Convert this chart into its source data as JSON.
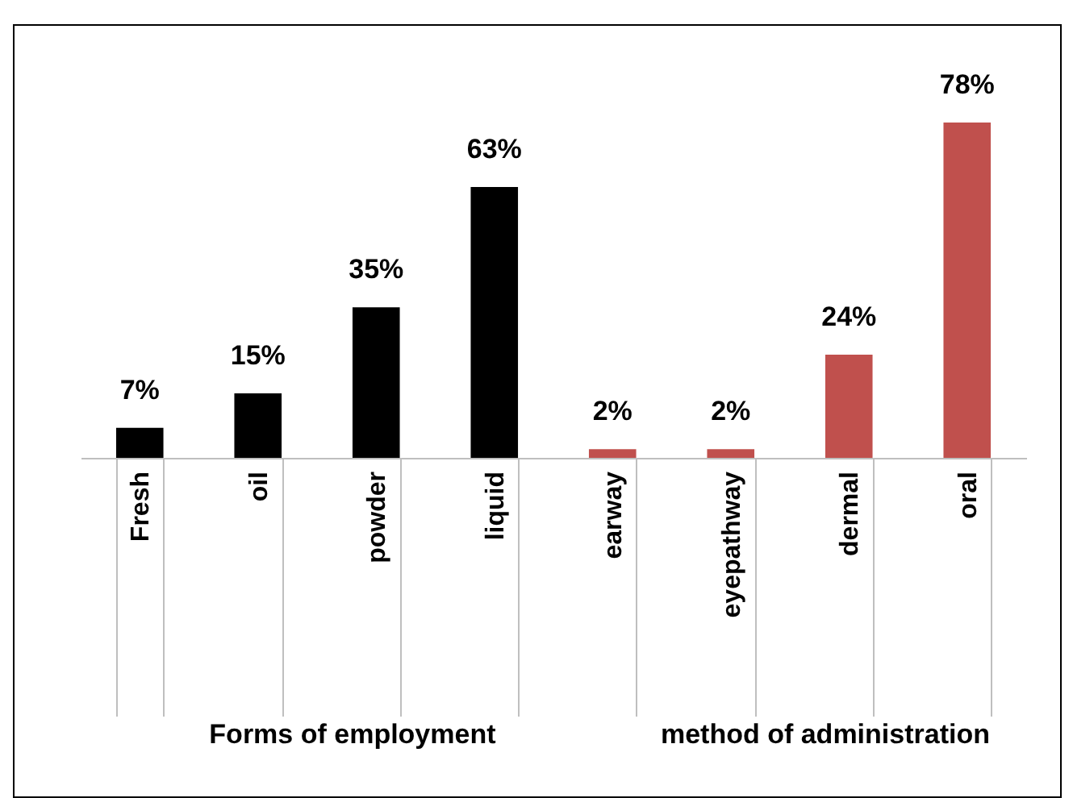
{
  "chart_data": {
    "type": "bar",
    "categories": [
      "Fresh",
      "oil",
      "powder",
      "liquid",
      "earway",
      "eyepathway",
      "dermal",
      "oral"
    ],
    "series": [
      {
        "name": "Forms of employment",
        "color": "#000000",
        "values": [
          7,
          15,
          35,
          63,
          null,
          null,
          null,
          null
        ],
        "value_labels": [
          "7%",
          "15%",
          "35%",
          "63%",
          null,
          null,
          null,
          null
        ]
      },
      {
        "name": "method of administration",
        "color": "#c0504d",
        "values": [
          null,
          null,
          null,
          null,
          2,
          2,
          24,
          78
        ],
        "value_labels": [
          null,
          null,
          null,
          null,
          "2%",
          "2%",
          "24%",
          "78%"
        ]
      }
    ],
    "legend": false
  }
}
